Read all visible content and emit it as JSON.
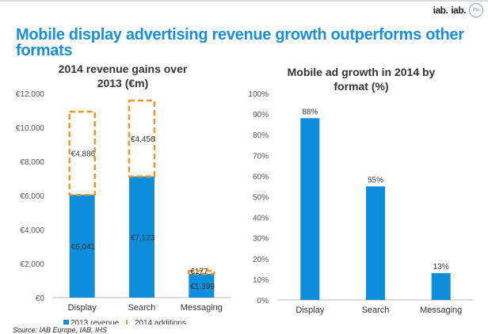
{
  "header": {
    "title": "Mobile display advertising revenue growth outperforms other formats",
    "logos": [
      "iab.",
      "iab.",
      "ihs"
    ]
  },
  "source": "Source: IAB Europe, IAB, IHS",
  "colors": {
    "accent": "#1b8fd6",
    "bar": "#0f8fdb",
    "addition": "#f0962b"
  },
  "chart_data": [
    {
      "type": "bar",
      "title": "2014 revenue gains over 2013 (€m)",
      "categories": [
        "Display",
        "Search",
        "Messaging"
      ],
      "series": [
        {
          "name": "2013 revenue",
          "values": [
            6041,
            7123,
            1399
          ],
          "labels": [
            "€6,041",
            "€7,123",
            "€1,399"
          ]
        },
        {
          "name": "2014 additions",
          "values": [
            4886,
            4456,
            177
          ],
          "labels": [
            "€4,886",
            "€4,456",
            "€177"
          ]
        }
      ],
      "ylim": [
        0,
        12000
      ],
      "yticks": [
        0,
        2000,
        4000,
        6000,
        8000,
        10000,
        12000
      ],
      "ytick_labels": [
        "€0",
        "€2,000",
        "€4,000",
        "€6,000",
        "€8,000",
        "€10,000",
        "€12,000"
      ],
      "legend": [
        "2013 revenue",
        "2014 additions"
      ]
    },
    {
      "type": "bar",
      "title": "Mobile ad growth in 2014 by format (%)",
      "categories": [
        "Display",
        "Search",
        "Messaging"
      ],
      "values": [
        88,
        55,
        13
      ],
      "labels": [
        "88%",
        "55%",
        "13%"
      ],
      "ylim": [
        0,
        100
      ],
      "yticks": [
        0,
        10,
        20,
        30,
        40,
        50,
        60,
        70,
        80,
        90,
        100
      ],
      "ytick_labels": [
        "0%",
        "10%",
        "20%",
        "30%",
        "40%",
        "50%",
        "60%",
        "70%",
        "80%",
        "90%",
        "100%"
      ]
    }
  ]
}
